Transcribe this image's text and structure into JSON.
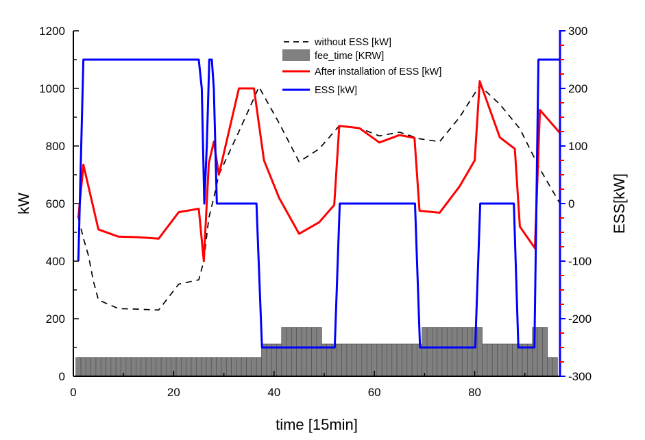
{
  "chart_data": {
    "type": "line",
    "xlabel": "time [15min]",
    "ylabel": "kW",
    "y2label": "ESS[kW]",
    "xlim": [
      0,
      97
    ],
    "ylim": [
      0,
      1200
    ],
    "y2lim": [
      -300,
      300
    ],
    "x_ticks": [
      0,
      20,
      40,
      60,
      80
    ],
    "y_ticks": [
      0,
      200,
      400,
      600,
      800,
      1000,
      1200
    ],
    "y2_ticks": [
      -300,
      -200,
      -100,
      0,
      100,
      200,
      300
    ],
    "colors": {
      "without_ess": "#000000",
      "fee_time": "#808080",
      "after_ess": "#ff0000",
      "ess": "#0000ff",
      "y2_axis": "#0000ff",
      "y2_minor_ticks": "#ff0000"
    },
    "legend": {
      "placement": "top-center",
      "entries": [
        "without ESS [kW]",
        "fee_time [KRW]",
        "After installation of ESS [kW]",
        "ESS [kW]"
      ]
    },
    "series": [
      {
        "name": "without ESS [kW]",
        "axis": "left",
        "style": "dashed",
        "x": [
          1,
          2,
          3,
          4,
          5,
          9,
          13,
          17,
          21,
          25,
          26,
          27,
          28,
          29,
          33,
          37,
          41,
          45,
          49,
          53,
          57,
          61,
          65,
          69,
          73,
          77,
          81,
          85,
          89,
          93,
          97
        ],
        "y": [
          550,
          480,
          420,
          330,
          265,
          235,
          233,
          230,
          320,
          335,
          400,
          550,
          620,
          700,
          850,
          1005,
          880,
          745,
          790,
          870,
          862,
          835,
          848,
          825,
          815,
          900,
          1010,
          945,
          860,
          720,
          600
        ]
      },
      {
        "name": "fee_time [KRW]",
        "axis": "left",
        "style": "bar",
        "x": [
          1,
          2,
          3,
          4,
          5,
          6,
          7,
          8,
          9,
          10,
          11,
          12,
          13,
          14,
          15,
          16,
          17,
          18,
          19,
          20,
          21,
          22,
          23,
          24,
          25,
          26,
          27,
          28,
          29,
          30,
          31,
          32,
          33,
          34,
          35,
          36,
          37,
          38,
          39,
          40,
          41,
          42,
          43,
          44,
          45,
          46,
          47,
          48,
          49,
          50,
          51,
          52,
          53,
          54,
          55,
          56,
          57,
          58,
          59,
          60,
          61,
          62,
          63,
          64,
          65,
          66,
          67,
          68,
          69,
          70,
          71,
          72,
          73,
          74,
          75,
          76,
          77,
          78,
          79,
          80,
          81,
          82,
          83,
          84,
          85,
          86,
          87,
          88,
          89,
          90,
          91,
          92,
          93,
          94,
          95,
          96
        ],
        "y": [
          65,
          65,
          65,
          65,
          65,
          65,
          65,
          65,
          65,
          65,
          65,
          65,
          65,
          65,
          65,
          65,
          65,
          65,
          65,
          65,
          65,
          65,
          65,
          65,
          65,
          65,
          65,
          65,
          65,
          65,
          65,
          65,
          65,
          65,
          65,
          65,
          65,
          112,
          112,
          112,
          112,
          170,
          170,
          170,
          170,
          170,
          170,
          170,
          170,
          112,
          112,
          112,
          112,
          112,
          112,
          112,
          112,
          112,
          112,
          112,
          112,
          112,
          112,
          112,
          112,
          112,
          112,
          112,
          112,
          170,
          170,
          170,
          170,
          170,
          170,
          170,
          170,
          170,
          170,
          170,
          170,
          112,
          112,
          112,
          112,
          112,
          112,
          112,
          112,
          112,
          112,
          170,
          170,
          170,
          65,
          65
        ]
      },
      {
        "name": "After installation of ESS [kW]",
        "axis": "left",
        "style": "solid",
        "x": [
          1,
          2,
          5,
          9,
          13,
          17,
          21,
          25,
          26,
          27,
          28,
          29,
          33,
          36,
          38,
          41,
          45,
          49,
          52,
          53,
          57,
          61,
          65,
          68,
          69,
          73,
          77,
          80,
          81,
          85,
          88,
          89,
          92,
          93,
          97
        ],
        "y": [
          550,
          735,
          510,
          485,
          483,
          478,
          570,
          582,
          400,
          740,
          815,
          700,
          1000,
          1000,
          750,
          620,
          495,
          535,
          595,
          870,
          862,
          812,
          838,
          828,
          575,
          568,
          660,
          750,
          1025,
          830,
          790,
          520,
          445,
          925,
          845
        ]
      },
      {
        "name": "ESS [kW]",
        "axis": "right",
        "style": "solid",
        "x": [
          1,
          2,
          25,
          25.6,
          26.1,
          26.6,
          27.1,
          27.6,
          28,
          28.6,
          29.1,
          36.5,
          37.6,
          52.1,
          53.1,
          68.1,
          69.1,
          80.1,
          81.1,
          87.8,
          88.7,
          91.9,
          92.7,
          97
        ],
        "y": [
          -100,
          250,
          250,
          200,
          0,
          100,
          250,
          250,
          200,
          0,
          0,
          0,
          -250,
          -250,
          0,
          0,
          -250,
          -250,
          0,
          0,
          -250,
          -250,
          250,
          250
        ]
      }
    ]
  }
}
